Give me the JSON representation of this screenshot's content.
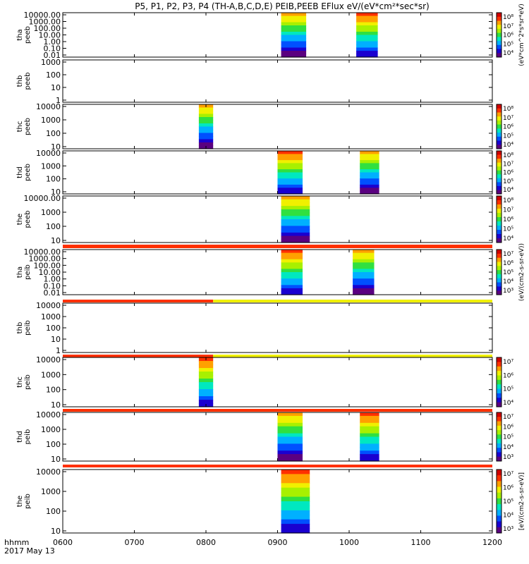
{
  "title": "P5, P1, P2, P3, P4 (TH-A,B,C,D,E) PEIB,PEEB EFlux eV/(eV*cm²*sec*sr)",
  "footer": {
    "label1": "hhmm",
    "label2": "2017 May 13"
  },
  "colormap": [
    "#5a0080",
    "#1a00d0",
    "#0050ff",
    "#00b0ff",
    "#00e8c0",
    "#30e040",
    "#a8f000",
    "#f0f000",
    "#ffa000",
    "#ff3000",
    "#d00000"
  ],
  "chart_data": {
    "type": "heatmap",
    "x_ticks": [
      "0600",
      "0700",
      "0800",
      "0900",
      "1000",
      "1100",
      "1200"
    ],
    "x_range_hours": [
      6.0,
      12.0
    ],
    "panels": [
      {
        "ylabel": [
          "tha",
          "peeb"
        ],
        "yticks": [
          "10000.00",
          "1000.00",
          "100.00",
          "10.00",
          "1.00",
          "0.10",
          "0.01"
        ],
        "blocks": [
          {
            "start": 9.05,
            "end": 9.4
          },
          {
            "start": 10.1,
            "end": 10.4
          }
        ],
        "colorbar": {
          "labels": [
            "10⁸",
            "10⁷",
            "10⁶",
            "10⁵",
            "10⁴"
          ],
          "unit": "(eV*cm^2*s*sr*eV)"
        }
      },
      {
        "ylabel": [
          "thb",
          "peeb"
        ],
        "yticks": [
          "1000",
          "100",
          "10",
          "1"
        ],
        "blocks": [],
        "colorbar": null
      },
      {
        "ylabel": [
          "thc",
          "peeb"
        ],
        "yticks": [
          "10000",
          "1000",
          "100",
          "10"
        ],
        "blocks": [
          {
            "start": 7.9,
            "end": 8.1
          }
        ],
        "colorbar": {
          "labels": [
            "10⁸",
            "10⁷",
            "10⁶",
            "10⁵",
            "10⁴"
          ],
          "unit": ""
        }
      },
      {
        "ylabel": [
          "thd",
          "peeb"
        ],
        "yticks": [
          "10000",
          "1000",
          "100",
          "10"
        ],
        "blocks": [
          {
            "start": 9.0,
            "end": 9.35
          },
          {
            "start": 10.15,
            "end": 10.42
          }
        ],
        "colorbar": {
          "labels": [
            "10⁸",
            "10⁷",
            "10⁶",
            "10⁵",
            "10⁴"
          ],
          "unit": ""
        }
      },
      {
        "ylabel": [
          "the",
          "peeb"
        ],
        "yticks": [
          "10000.00",
          "1000",
          "100",
          "10"
        ],
        "blocks": [
          {
            "start": 9.05,
            "end": 9.45
          }
        ],
        "colorbar": {
          "labels": [
            "10⁸",
            "10⁷",
            "10⁶",
            "10⁵",
            "10⁴"
          ],
          "unit": ""
        }
      },
      {
        "ylabel": [
          "tha",
          "peib"
        ],
        "yticks": [
          "10000.00",
          "1000.00",
          "100.00",
          "10.00",
          "1.00",
          "0.10",
          "0.01"
        ],
        "blocks": [
          {
            "start": 9.05,
            "end": 9.35
          },
          {
            "start": 10.05,
            "end": 10.35
          }
        ],
        "colorbar": {
          "labels": [
            "10⁷",
            "10⁶",
            "10⁵",
            "10⁴",
            "10³"
          ],
          "unit": "(eV/(cm2-s-sr-eV))"
        }
      },
      {
        "ylabel": [
          "thb",
          "peib"
        ],
        "yticks": [
          "10000",
          "1000",
          "100",
          "10",
          "1"
        ],
        "blocks": [],
        "colorbar": null
      },
      {
        "ylabel": [
          "thc",
          "peib"
        ],
        "yticks": [
          "10000",
          "1000",
          "100",
          "10"
        ],
        "blocks": [
          {
            "start": 7.9,
            "end": 8.1
          }
        ],
        "colorbar": {
          "labels": [
            "10⁷",
            "10⁶",
            "10⁵",
            "10⁴"
          ],
          "unit": ""
        }
      },
      {
        "ylabel": [
          "thd",
          "peib"
        ],
        "yticks": [
          "10000",
          "1000",
          "100",
          "10"
        ],
        "blocks": [
          {
            "start": 9.0,
            "end": 9.35
          },
          {
            "start": 10.15,
            "end": 10.42
          }
        ],
        "colorbar": {
          "labels": [
            "10⁷",
            "10⁶",
            "10⁵",
            "10⁴",
            "10³"
          ],
          "unit": ""
        }
      },
      {
        "ylabel": [
          "the",
          "peib"
        ],
        "yticks": [
          "10000",
          "1000",
          "100",
          "10"
        ],
        "blocks": [
          {
            "start": 9.05,
            "end": 9.45
          }
        ],
        "colorbar": {
          "labels": [
            "10⁷",
            "10⁶",
            "10⁵",
            "10⁴",
            "10³"
          ],
          "unit": "[eV/(cm2-s-sr-eV)]"
        }
      }
    ]
  }
}
